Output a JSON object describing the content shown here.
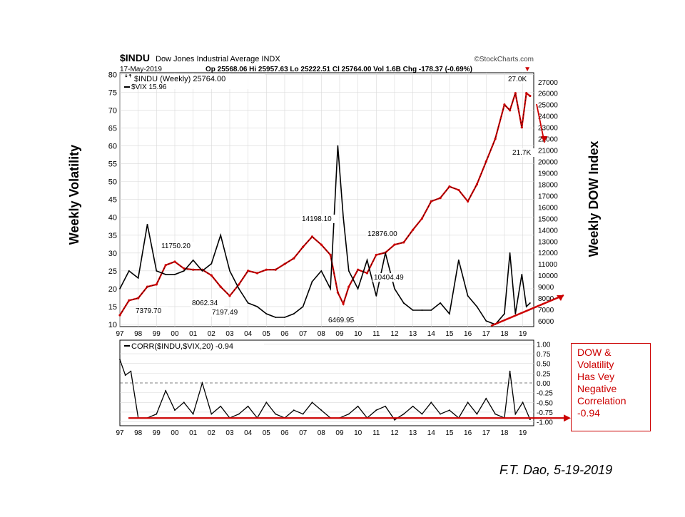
{
  "header": {
    "symbol": "$INDU",
    "name": "Dow Jones Industrial Average",
    "exchange": "INDX",
    "source": "©StockCharts.com",
    "date": "17-May-2019",
    "stats": "Op 25568.06  Hi 25957.63  Lo 25222.51  Cl 25764.00  Vol 1.6B  Chg -178.37 (-0.69%)",
    "change_marker": "▼"
  },
  "annotations": {
    "left_axis_title": "Weekly Volatility",
    "right_axis_title": "Weekly DOW Index",
    "note": "DOW &\nVolatility\nHas Vey\nNegative\nCorrelation\n-0.94",
    "credit": "F.T. Dao, 5-19-2019"
  },
  "colors": {
    "dow_bars": "#cc0000",
    "vix_line": "#000000",
    "annotation_red": "#cc0000",
    "grid": "#d9d9d9"
  },
  "chart_data": [
    {
      "type": "line",
      "legend": [
        "$INDU (Weekly) 25764.00",
        "$VIX 15.96"
      ],
      "x": [
        1997.0,
        1997.5,
        1998.0,
        1998.5,
        1999.0,
        1999.5,
        2000.0,
        2000.5,
        2001.0,
        2001.5,
        2002.0,
        2002.5,
        2003.0,
        2003.5,
        2004.0,
        2004.5,
        2005.0,
        2005.5,
        2006.0,
        2006.5,
        2007.0,
        2007.5,
        2008.0,
        2008.5,
        2008.9,
        2009.2,
        2009.5,
        2010.0,
        2010.5,
        2011.0,
        2011.5,
        2012.0,
        2012.5,
        2013.0,
        2013.5,
        2014.0,
        2014.5,
        2015.0,
        2015.5,
        2016.0,
        2016.5,
        2017.0,
        2017.5,
        2018.0,
        2018.3,
        2018.6,
        2018.95,
        2019.2,
        2019.4
      ],
      "x_ticks": [
        "97",
        "98",
        "99",
        "00",
        "01",
        "02",
        "03",
        "04",
        "05",
        "06",
        "07",
        "08",
        "09",
        "10",
        "11",
        "12",
        "13",
        "14",
        "15",
        "16",
        "17",
        "18",
        "19"
      ],
      "left_axis": {
        "ticks": [
          10,
          15,
          20,
          25,
          30,
          35,
          40,
          45,
          50,
          55,
          60,
          65,
          70,
          75,
          80
        ],
        "range": [
          10,
          80
        ]
      },
      "right_axis": {
        "ticks": [
          6000,
          7000,
          8000,
          9000,
          10000,
          11000,
          12000,
          13000,
          14000,
          15000,
          16000,
          17000,
          18000,
          19000,
          20000,
          21000,
          22000,
          23000,
          24000,
          25000,
          26000,
          27000
        ],
        "range": [
          5500,
          27800
        ]
      },
      "series": [
        {
          "name": "$INDU (Weekly) 25764.00",
          "axis": "right",
          "values": [
            6500,
            7800,
            8000,
            9000,
            9200,
            10900,
            11200,
            10600,
            10500,
            10500,
            10000,
            9000,
            8200,
            9200,
            10400,
            10200,
            10500,
            10500,
            11000,
            11500,
            12500,
            13400,
            12700,
            11800,
            8500,
            7500,
            9000,
            10500,
            10200,
            11800,
            12000,
            12700,
            12900,
            14000,
            15000,
            16500,
            16800,
            17800,
            17500,
            16500,
            18000,
            20000,
            22000,
            25000,
            24500,
            26000,
            23000,
            26000,
            25764
          ]
        },
        {
          "name": "$VIX 15.96",
          "axis": "left",
          "values": [
            20,
            25,
            23,
            38,
            25,
            24,
            24,
            25,
            28,
            25,
            27,
            35,
            25,
            20,
            16,
            15,
            13,
            12,
            12,
            13,
            15,
            22,
            25,
            20,
            60,
            40,
            25,
            20,
            28,
            18,
            30,
            20,
            16,
            14,
            14,
            14,
            16,
            13,
            28,
            18,
            15,
            11,
            10,
            13,
            30,
            13,
            24,
            15,
            16
          ]
        }
      ],
      "price_labels": [
        "27.0K",
        "21.7K",
        "14198.10",
        "12876.00",
        "11750.20",
        "10404.49",
        "8062.34",
        "7379.70",
        "7197.49",
        "6469.95"
      ]
    },
    {
      "type": "line",
      "title": "CORR($INDU,$VIX,20) -0.94",
      "x": [
        1997.0,
        1997.3,
        1997.6,
        1998.0,
        1998.5,
        1999.0,
        1999.5,
        2000.0,
        2000.5,
        2001.0,
        2001.5,
        2002.0,
        2002.5,
        2003.0,
        2003.5,
        2004.0,
        2004.5,
        2005.0,
        2005.5,
        2006.0,
        2006.5,
        2007.0,
        2007.5,
        2008.0,
        2008.5,
        2009.0,
        2009.5,
        2010.0,
        2010.5,
        2011.0,
        2011.5,
        2012.0,
        2012.5,
        2013.0,
        2013.5,
        2014.0,
        2014.5,
        2015.0,
        2015.5,
        2016.0,
        2016.5,
        2017.0,
        2017.5,
        2018.0,
        2018.3,
        2018.6,
        2019.0,
        2019.4
      ],
      "yticks": [
        1.0,
        0.75,
        0.5,
        0.25,
        0.0,
        -0.25,
        -0.5,
        -0.75,
        -1.0
      ],
      "ylim": [
        -1.1,
        1.1
      ],
      "series": [
        {
          "name": "CORR($INDU,$VIX,20) -0.94",
          "values": [
            0.6,
            0.2,
            0.3,
            -0.9,
            -0.9,
            -0.8,
            -0.2,
            -0.7,
            -0.5,
            -0.8,
            0.0,
            -0.8,
            -0.6,
            -0.9,
            -0.8,
            -0.6,
            -0.9,
            -0.5,
            -0.8,
            -0.9,
            -0.7,
            -0.8,
            -0.5,
            -0.7,
            -0.9,
            -0.9,
            -0.8,
            -0.6,
            -0.9,
            -0.7,
            -0.6,
            -0.95,
            -0.8,
            -0.6,
            -0.8,
            -0.5,
            -0.8,
            -0.7,
            -0.9,
            -0.5,
            -0.8,
            -0.4,
            -0.8,
            -0.9,
            0.3,
            -0.8,
            -0.5,
            -0.94
          ]
        }
      ]
    }
  ]
}
